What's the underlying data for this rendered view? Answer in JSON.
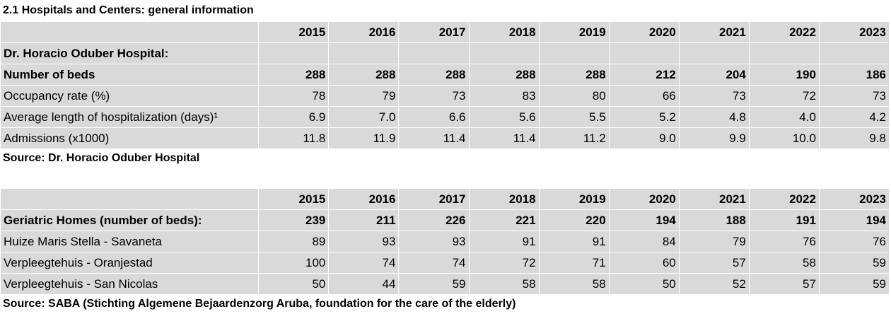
{
  "title": "2.1  Hospitals and Centers: general information",
  "years": [
    "2015",
    "2016",
    "2017",
    "2018",
    "2019",
    "2020",
    "2021",
    "2022",
    "2023"
  ],
  "hospital": {
    "name": "Dr. Horacio Oduber Hospital:",
    "rows": [
      {
        "label": "Number of beds",
        "bold": true,
        "values": [
          "288",
          "288",
          "288",
          "288",
          "288",
          "212",
          "204",
          "190",
          "186"
        ]
      },
      {
        "label": "Occupancy  rate  (%)",
        "bold": false,
        "values": [
          "78",
          "79",
          "73",
          "83",
          "80",
          "66",
          "73",
          "72",
          "73"
        ]
      },
      {
        "label": "Average length of hospitalization (days)¹",
        "bold": false,
        "values": [
          "6.9",
          "7.0",
          "6.6",
          "5.6",
          "5.5",
          "5.2",
          "4.8",
          "4.0",
          "4.2"
        ]
      },
      {
        "label": "Admissions (x1000)",
        "bold": false,
        "values": [
          "11.8",
          "11.9",
          "11.4",
          "11.4",
          "11.2",
          "9.0",
          "9.9",
          "10.0",
          "9.8"
        ]
      }
    ],
    "source": "Source: Dr. Horacio Oduber Hospital"
  },
  "geriatric": {
    "rows": [
      {
        "label": "Geriatric Homes (number of beds):",
        "bold": true,
        "values": [
          "239",
          "211",
          "226",
          "221",
          "220",
          "194",
          "188",
          "191",
          "194"
        ]
      },
      {
        "label": "Huize Maris Stella - Savaneta",
        "bold": false,
        "values": [
          "89",
          "93",
          "93",
          "91",
          "91",
          "84",
          "79",
          "76",
          "76"
        ]
      },
      {
        "label": "Verpleegtehuis - Oranjestad",
        "bold": false,
        "values": [
          "100",
          "74",
          "74",
          "72",
          "71",
          "60",
          "57",
          "58",
          "59"
        ]
      },
      {
        "label": "Verpleegtehuis - San Nicolas",
        "bold": false,
        "values": [
          "50",
          "44",
          "59",
          "58",
          "58",
          "50",
          "52",
          "57",
          "59"
        ]
      }
    ],
    "source": "Source: SABA (Stichting Algemene Bejaardenzorg Aruba, foundation for the care of the elderly)"
  }
}
